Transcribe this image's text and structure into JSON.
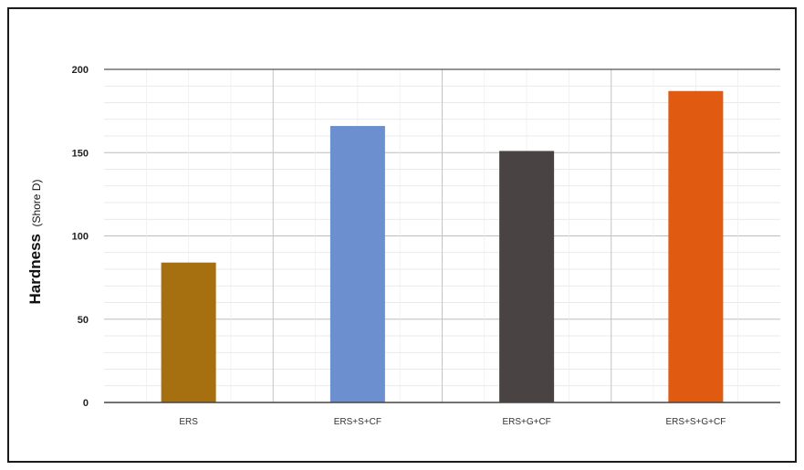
{
  "chart_data": {
    "type": "bar",
    "categories": [
      "ERS",
      "ERS+S+CF",
      "ERS+G+CF",
      "ERS+S+G+CF"
    ],
    "values": [
      84,
      166,
      151,
      187
    ],
    "colors": [
      "#a66f0f",
      "#6b8fcf",
      "#4a4344",
      "#e05a12"
    ],
    "ylabel": "Hardness",
    "ylabel_unit": "(Shore D)",
    "ylim": [
      0,
      200
    ],
    "yticks": [
      0,
      50,
      100,
      150,
      200
    ],
    "grid": true
  }
}
